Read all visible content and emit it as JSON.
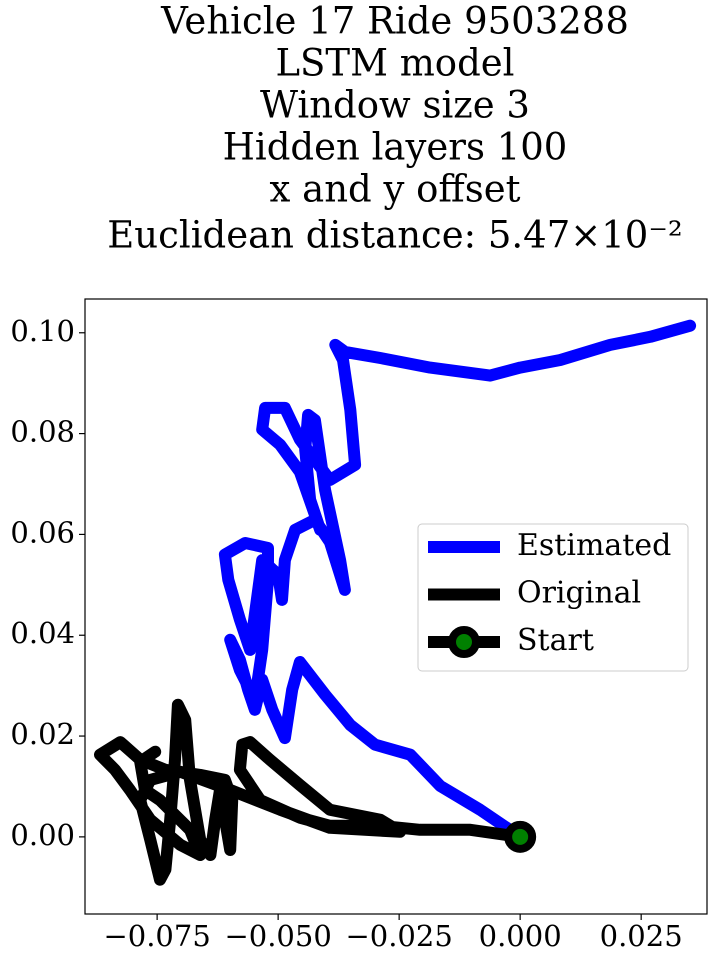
{
  "chart_data": {
    "type": "line",
    "title": [
      "Vehicle 17 Ride 9503288",
      "LSTM model",
      "Window size 3",
      "Hidden layers 100",
      "x and y offset",
      "Euclidean distance: 5.47×10⁻²"
    ],
    "xlim": [
      -0.0899,
      0.0386
    ],
    "ylim": [
      -0.0153,
      0.1067
    ],
    "xticks": [
      {
        "value": -0.075,
        "label": "−0.075"
      },
      {
        "value": -0.05,
        "label": "−0.050"
      },
      {
        "value": -0.025,
        "label": "−0.025"
      },
      {
        "value": 0,
        "label": "0.000"
      },
      {
        "value": 0.025,
        "label": "0.025"
      }
    ],
    "yticks": [
      {
        "value": 0,
        "label": "0.00"
      },
      {
        "value": 0.02,
        "label": "0.02"
      },
      {
        "value": 0.04,
        "label": "0.04"
      },
      {
        "value": 0.06,
        "label": "0.06"
      },
      {
        "value": 0.08,
        "label": "0.08"
      },
      {
        "value": 0.1,
        "label": "0.10"
      }
    ],
    "legend": "center right",
    "series": [
      {
        "name": "Estimated",
        "color": "#0000ff",
        "x": [
          0,
          -0.0083,
          -0.0165,
          -0.0227,
          -0.03,
          -0.0351,
          -0.0403,
          -0.0455,
          -0.0471,
          -0.0486,
          -0.0512,
          -0.0533,
          -0.0548,
          -0.0562,
          -0.0579,
          -0.0599,
          -0.0579,
          -0.0548,
          -0.0533,
          -0.0521,
          -0.0521,
          -0.0568,
          -0.061,
          -0.0603,
          -0.0579,
          -0.0558,
          -0.0533,
          -0.05,
          -0.0492,
          -0.0486,
          -0.0465,
          -0.0424,
          -0.0393,
          -0.0362,
          -0.0372,
          -0.0403,
          -0.0424,
          -0.0438,
          -0.0444,
          -0.0434,
          -0.0413,
          -0.0455,
          -0.0496,
          -0.0533,
          -0.0527,
          -0.0486,
          -0.0455,
          -0.0393,
          -0.0341,
          -0.0351,
          -0.0366,
          -0.0382,
          -0.0362,
          -0.0289,
          -0.0186,
          -0.0062,
          0,
          0.0083,
          0.0186,
          0.0269,
          0.0351
        ],
        "values": [
          0,
          0.0054,
          0.0101,
          0.0163,
          0.0183,
          0.0222,
          0.0282,
          0.0347,
          0.0292,
          0.0196,
          0.0252,
          0.0312,
          0.0252,
          0.0292,
          0.0351,
          0.0391,
          0.0331,
          0.0272,
          0.0371,
          0.051,
          0.0573,
          0.0583,
          0.056,
          0.051,
          0.0431,
          0.0371,
          0.0549,
          0.052,
          0.047,
          0.0549,
          0.0609,
          0.0629,
          0.0585,
          0.049,
          0.0549,
          0.0688,
          0.0827,
          0.0837,
          0.0768,
          0.0669,
          0.0609,
          0.0724,
          0.0778,
          0.0808,
          0.0851,
          0.0851,
          0.0788,
          0.0708,
          0.0738,
          0.0847,
          0.0946,
          0.0976,
          0.0962,
          0.095,
          0.0931,
          0.0915,
          0.0931,
          0.0946,
          0.0976,
          0.0992,
          0.1014
        ]
      },
      {
        "name": "Original",
        "color": "#000000",
        "x": [
          0,
          -0.0103,
          -0.0207,
          -0.0289,
          -0.0393,
          -0.0455,
          -0.0537,
          -0.0579,
          -0.0574,
          -0.0558,
          -0.0517,
          -0.0455,
          -0.0393,
          -0.0289,
          -0.0248,
          -0.0393,
          -0.0496,
          -0.0599,
          -0.0702,
          -0.0764,
          -0.0785,
          -0.0764,
          -0.0744,
          -0.0733,
          -0.0723,
          -0.0713,
          -0.0707,
          -0.0692,
          -0.0682,
          -0.0661,
          -0.064,
          -0.063,
          -0.062,
          -0.0599,
          -0.0595,
          -0.061,
          -0.0661,
          -0.0733,
          -0.0785,
          -0.0826,
          -0.0868,
          -0.0837,
          -0.0806,
          -0.0764,
          -0.0702,
          -0.0661,
          -0.0682,
          -0.0744,
          -0.0775,
          -0.0785,
          -0.0754
        ],
        "values": [
          0,
          0.0014,
          0.0014,
          0.0022,
          0.0022,
          0.0038,
          0.0073,
          0.0133,
          0.0183,
          0.0188,
          0.0153,
          0.0103,
          0.0054,
          0.0034,
          0.001,
          0.0018,
          0.0054,
          0.0093,
          0.0129,
          0.0113,
          0.0073,
          -0.0006,
          -0.0085,
          -0.0065,
          0.0034,
          0.0153,
          0.0262,
          0.0232,
          0.0113,
          -0.0006,
          -0.0036,
          0.0034,
          0.0093,
          -0.0026,
          0.0073,
          0.0113,
          0.0123,
          0.0133,
          0.0153,
          0.0188,
          0.0163,
          0.0133,
          0.0093,
          0.0034,
          -0.0016,
          -0.0036,
          0.0014,
          0.0073,
          0.0093,
          0.0149,
          0.0169
        ]
      },
      {
        "name": "Start",
        "color": "#000000",
        "marker_color": "#008000",
        "x": [
          0
        ],
        "values": [
          0
        ]
      }
    ]
  }
}
